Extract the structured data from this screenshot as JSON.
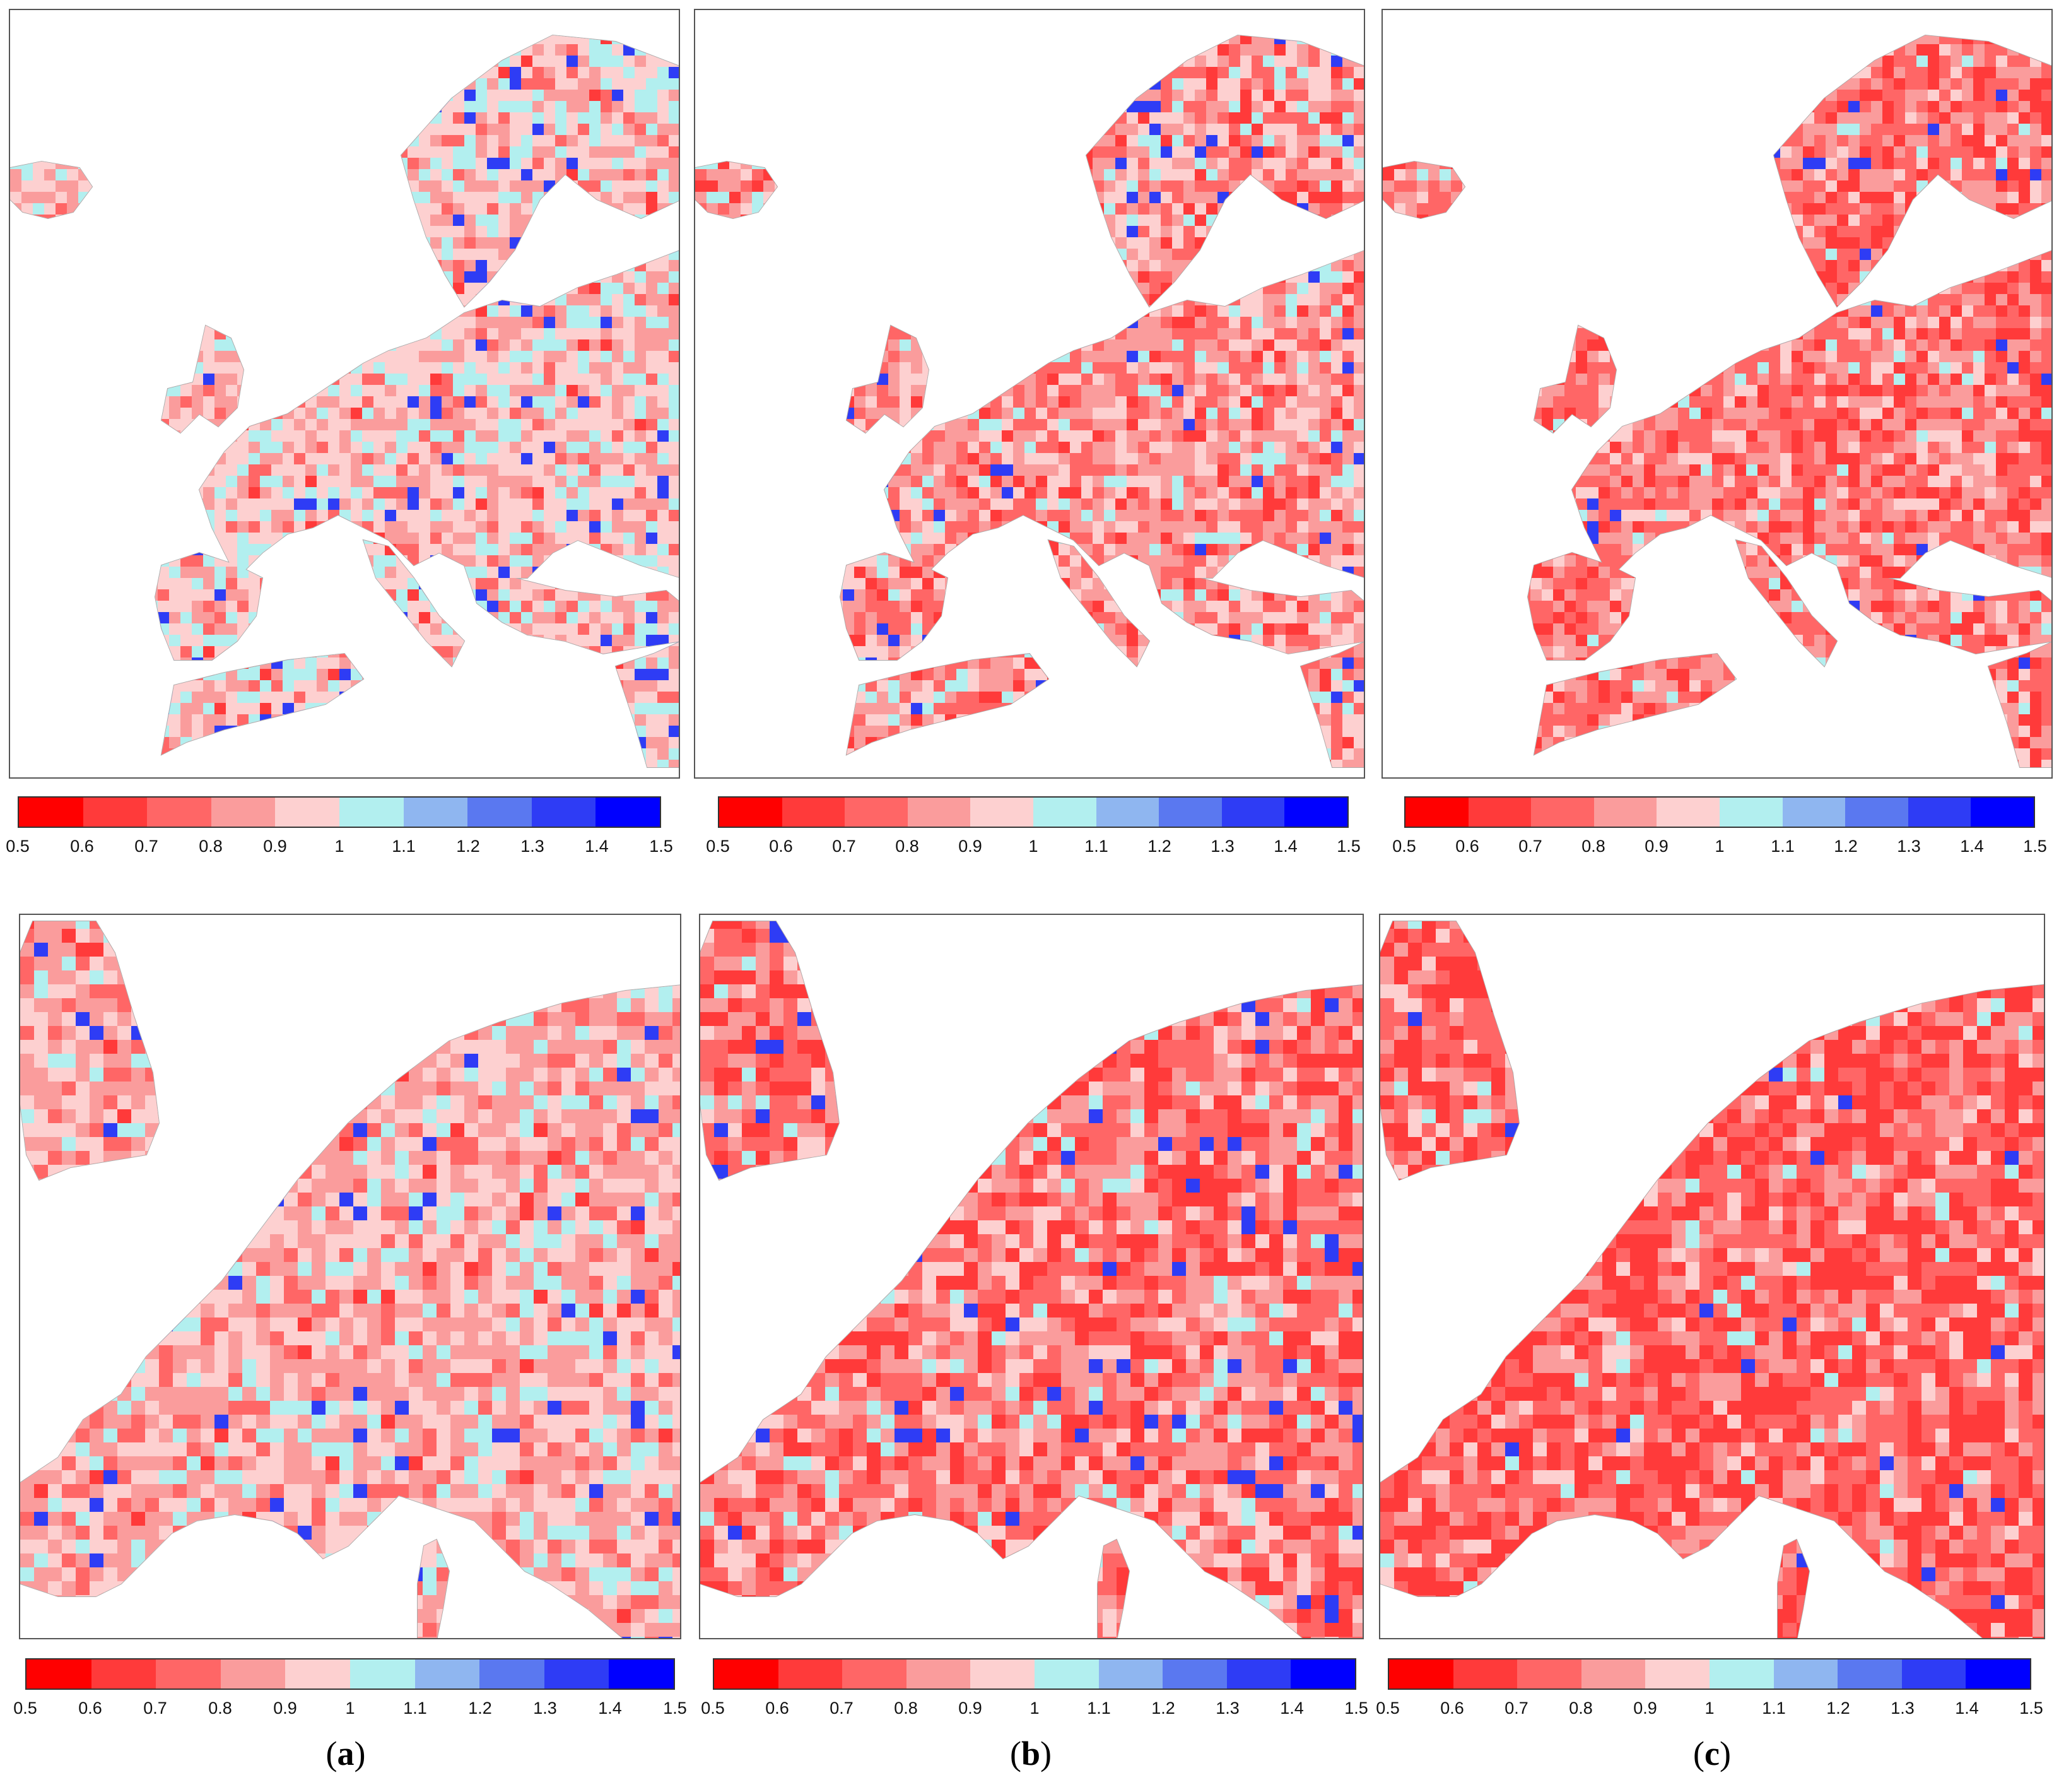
{
  "colorbar": {
    "colors": [
      "#ff0000",
      "#ff3a3a",
      "#ff6666",
      "#fa9c9c",
      "#fdd0d0",
      "#b2efef",
      "#8fb6f0",
      "#5a78f0",
      "#2e3cf5",
      "#0000ff"
    ],
    "ticks": [
      "0.5",
      "0.6",
      "0.7",
      "0.8",
      "0.9",
      "1",
      "1.1",
      "1.2",
      "1.3",
      "1.4",
      "1.5"
    ]
  },
  "panel_labels": [
    {
      "open": "(",
      "letter": "a",
      "close": ")"
    },
    {
      "open": "(",
      "letter": "b",
      "close": ")"
    },
    {
      "open": "(",
      "letter": "c",
      "close": ")"
    }
  ],
  "map_fill": {
    "background": "#ffffff",
    "coastline": "#aaaaaa"
  }
}
